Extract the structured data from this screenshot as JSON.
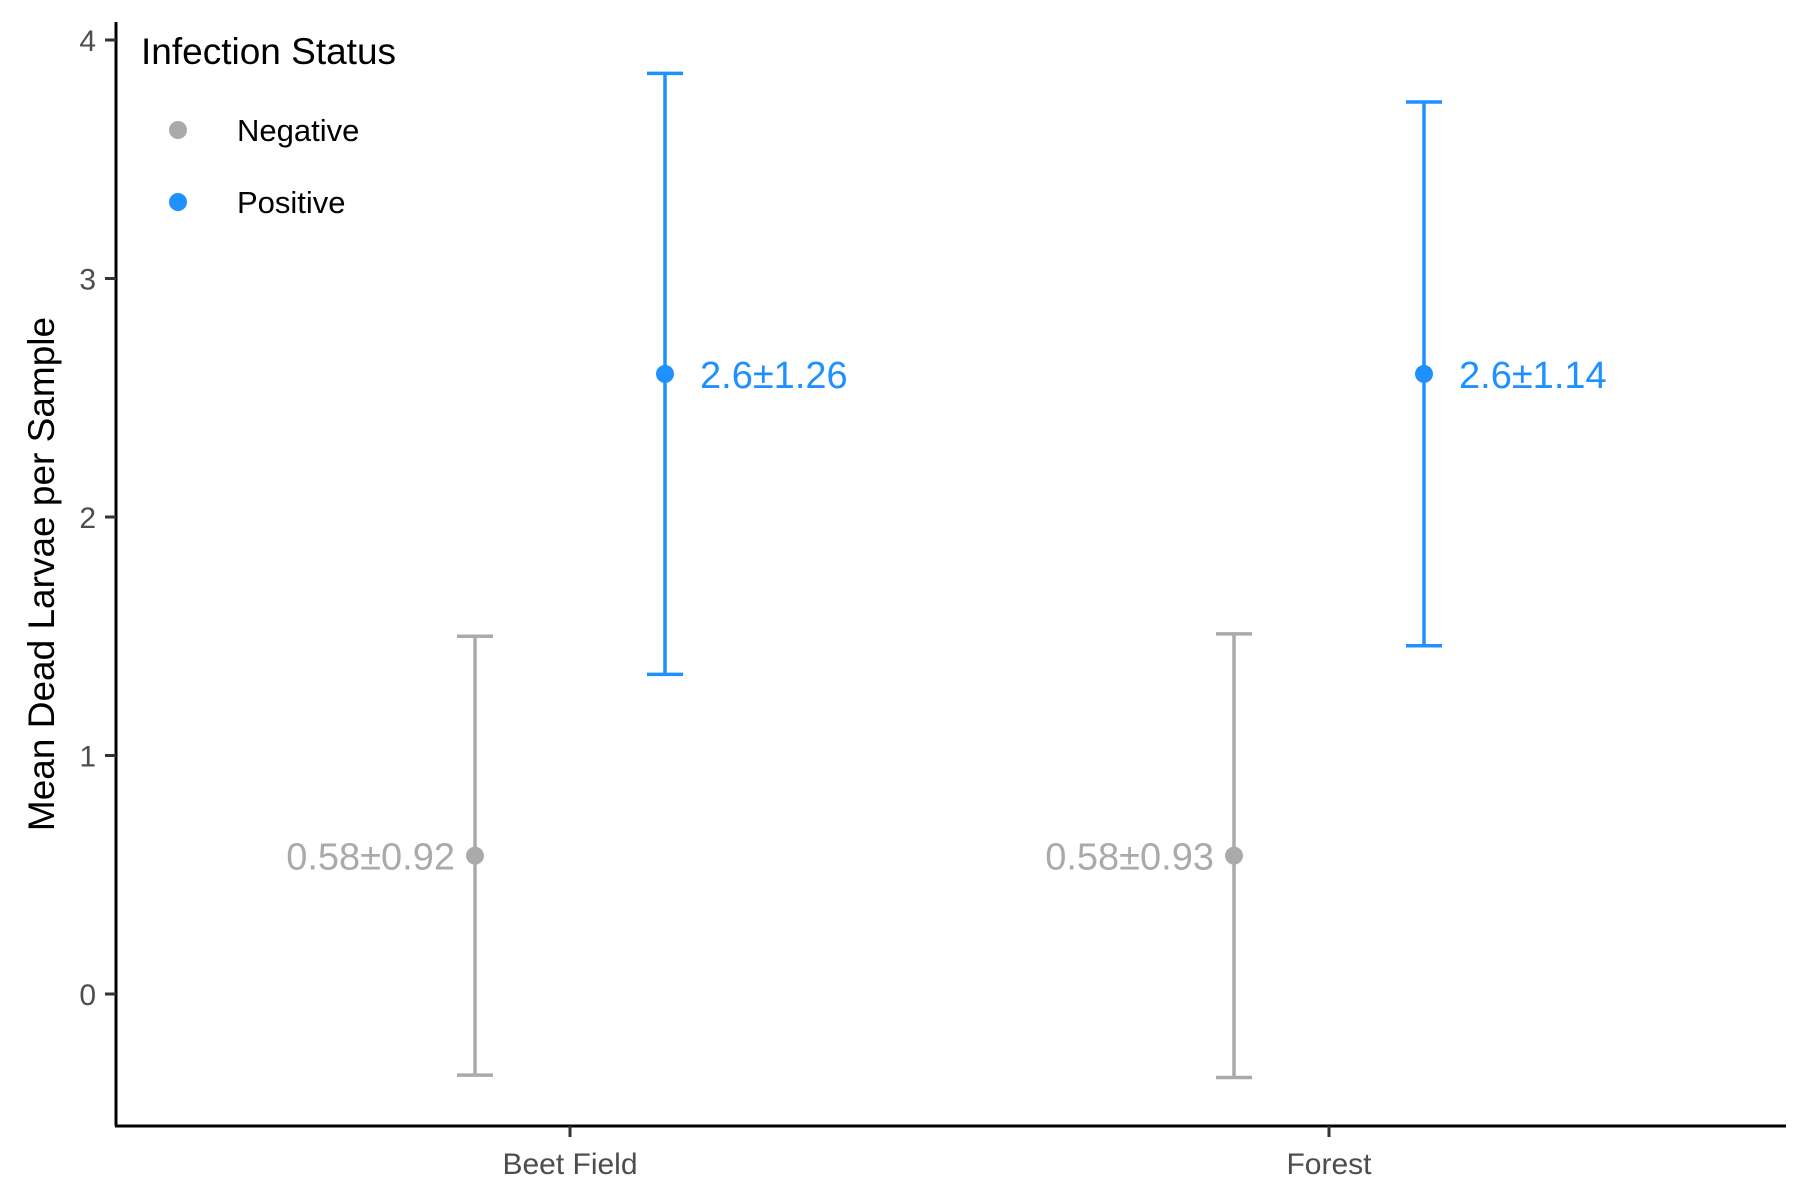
{
  "chart_data": {
    "type": "errorbar",
    "title": "",
    "xlabel": "",
    "ylabel": "Mean Dead Larvae per Sample",
    "categories": [
      "Beet Field",
      "Forest"
    ],
    "yticks": [
      0,
      1,
      2,
      3,
      4
    ],
    "ylim": [
      -0.55,
      4.1
    ],
    "grid": false,
    "legend": {
      "title": "Infection Status",
      "position": "top-left",
      "entries": [
        "Negative",
        "Positive"
      ]
    },
    "colors": {
      "Negative": "#aaaaaa",
      "Positive": "#1e90ff"
    },
    "series": [
      {
        "name": "Negative",
        "mean": [
          0.58,
          0.58
        ],
        "sd": [
          0.92,
          0.93
        ],
        "labels": [
          "0.58±0.92",
          "0.58±0.93"
        ]
      },
      {
        "name": "Positive",
        "mean": [
          2.6,
          2.6
        ],
        "sd": [
          1.26,
          1.14
        ],
        "labels": [
          "2.6±1.26",
          "2.6±1.14"
        ]
      }
    ]
  }
}
